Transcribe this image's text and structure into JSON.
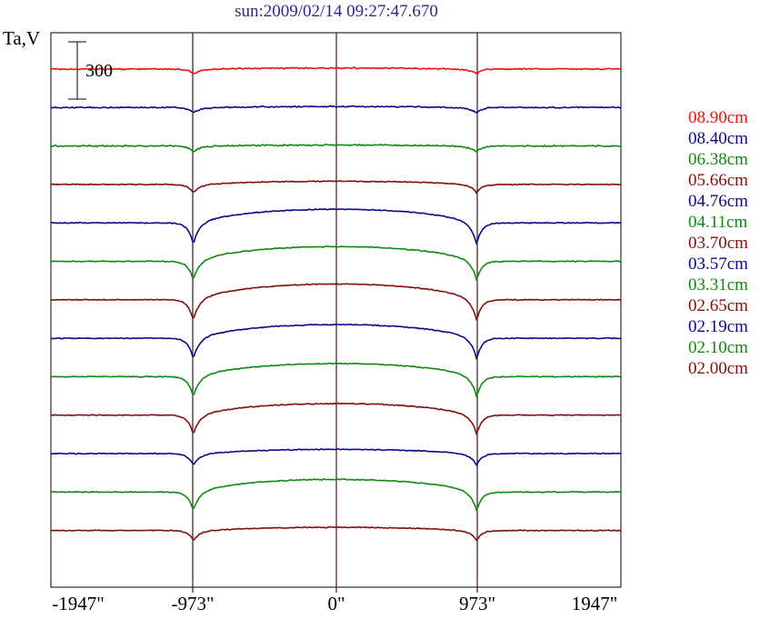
{
  "chart_data": {
    "type": "line",
    "title": "sun:2009/02/14 09:27:47.670",
    "ylabel": "Ta,V",
    "scale_bar": {
      "label": "300",
      "value": 300
    },
    "x_ticks": [
      "-1947\"",
      "-973\"",
      "0\"",
      "973\"",
      "1947\""
    ],
    "xlim": [
      -1947,
      1947
    ],
    "grid": "vertical lines at -973, 0, 973",
    "legend_placement": "right",
    "series": [
      {
        "name": "08.90cm",
        "color": "#ee1111",
        "baseline": 0,
        "limb_dip": 40,
        "disk_bulge": 10
      },
      {
        "name": "08.40cm",
        "color": "#0a0a8a",
        "baseline": 1,
        "limb_dip": 45,
        "disk_bulge": 10
      },
      {
        "name": "06.38cm",
        "color": "#118811",
        "baseline": 2,
        "limb_dip": 50,
        "disk_bulge": 10
      },
      {
        "name": "05.66cm",
        "color": "#801010",
        "baseline": 3,
        "limb_dip": 70,
        "disk_bulge": 30
      },
      {
        "name": "04.76cm",
        "color": "#0a0a8a",
        "baseline": 4,
        "limb_dip": 180,
        "disk_bulge": 130
      },
      {
        "name": "04.11cm",
        "color": "#118811",
        "baseline": 5,
        "limb_dip": 160,
        "disk_bulge": 140
      },
      {
        "name": "03.70cm",
        "color": "#801010",
        "baseline": 6,
        "limb_dip": 175,
        "disk_bulge": 150
      },
      {
        "name": "03.57cm",
        "color": "#0a0a8a",
        "baseline": 7,
        "limb_dip": 175,
        "disk_bulge": 130
      },
      {
        "name": "03.31cm",
        "color": "#118811",
        "baseline": 8,
        "limb_dip": 170,
        "disk_bulge": 125
      },
      {
        "name": "02.65cm",
        "color": "#801010",
        "baseline": 9,
        "limb_dip": 165,
        "disk_bulge": 110
      },
      {
        "name": "02.19cm",
        "color": "#0a0a8a",
        "baseline": 10,
        "limb_dip": 100,
        "disk_bulge": 40
      },
      {
        "name": "02.10cm",
        "color": "#118811",
        "baseline": 11,
        "limb_dip": 160,
        "disk_bulge": 120
      },
      {
        "name": "02.00cm",
        "color": "#801010",
        "baseline": 12,
        "limb_dip": 85,
        "disk_bulge": 30
      }
    ]
  }
}
